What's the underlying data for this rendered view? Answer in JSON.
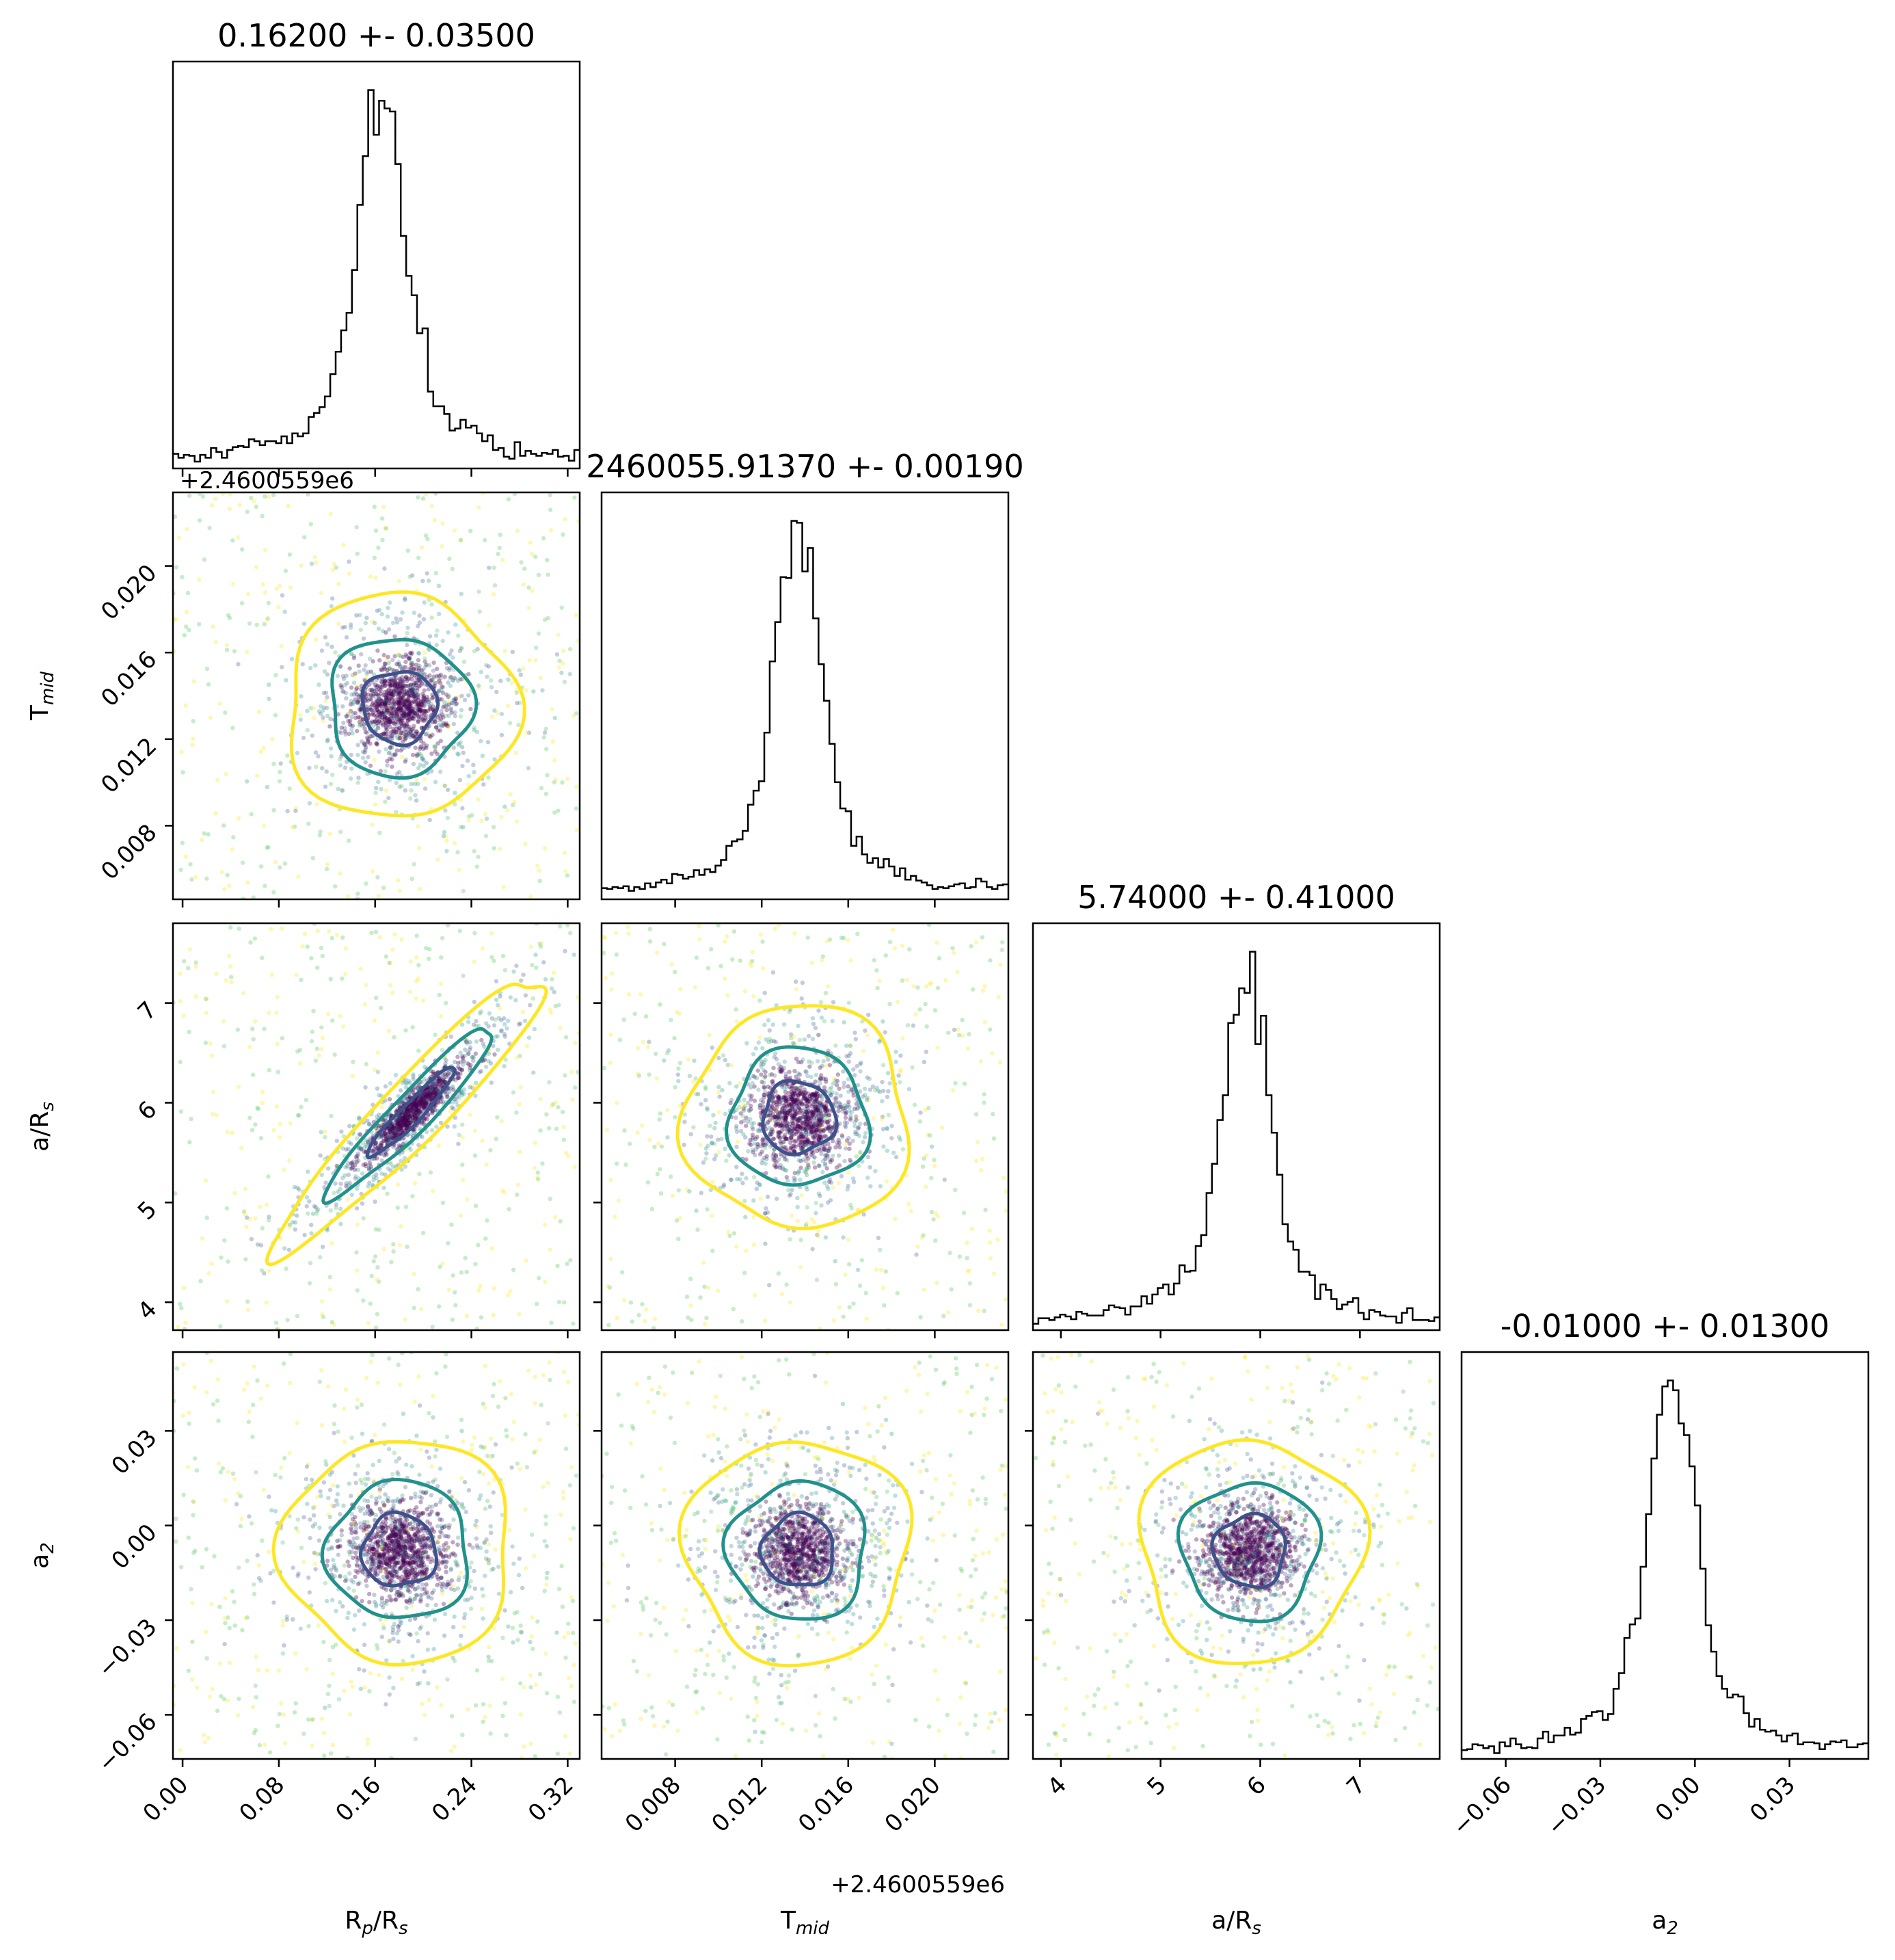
{
  "chart_data": {
    "type": "scatter",
    "subtype": "corner-plot",
    "parameters": [
      {
        "label_base": "R",
        "label_sub1": "p",
        "label_mid": "/R",
        "label_sub2": "s",
        "median": 0.162,
        "sigma": 0.035,
        "title": "0.16200 +- 0.03500",
        "range": [
          -0.008,
          0.33
        ],
        "ticks": [
          0.0,
          0.08,
          0.16,
          0.24,
          0.32
        ],
        "tick_labels": [
          "0.00",
          "0.08",
          "0.16",
          "0.24",
          "0.32"
        ],
        "offset_label": "",
        "hist_peak": 0.165
      },
      {
        "label_base": "T",
        "label_sub1": "mid",
        "label_mid": "",
        "label_sub2": "",
        "median": 0.0137,
        "sigma": 0.0019,
        "title": "2460055.91370 +- 0.00190",
        "range": [
          0.0046,
          0.0234
        ],
        "ticks": [
          0.008,
          0.012,
          0.016,
          0.02
        ],
        "tick_labels": [
          "0.008",
          "0.012",
          "0.016",
          "0.020"
        ],
        "offset_label": "+2.4600559e6",
        "hist_peak": 0.0137
      },
      {
        "label_base": "a/R",
        "label_sub1": "s",
        "label_mid": "",
        "label_sub2": "",
        "median": 5.74,
        "sigma": 0.41,
        "title": "5.74000 +- 0.41000",
        "range": [
          3.72,
          7.8
        ],
        "ticks": [
          4,
          5,
          6,
          7
        ],
        "tick_labels": [
          "4",
          "5",
          "6",
          "7"
        ],
        "offset_label": "",
        "hist_peak": 5.85
      },
      {
        "label_base": "a",
        "label_sub1": "2",
        "label_mid": "",
        "label_sub2": "",
        "median": -0.01,
        "sigma": 0.013,
        "title": "-0.01000 +- 0.01300",
        "range": [
          -0.074,
          0.055
        ],
        "ticks": [
          -0.06,
          -0.03,
          0.0,
          0.03
        ],
        "tick_labels": [
          "−0.06",
          "−0.03",
          "0.00",
          "0.03"
        ],
        "offset_label": "",
        "hist_peak": -0.007
      }
    ],
    "pairs": [
      {
        "x": 0,
        "y": 1,
        "center": [
          0.18,
          0.0135
        ],
        "correlation": 0.0
      },
      {
        "x": 0,
        "y": 2,
        "center": [
          0.19,
          5.9
        ],
        "correlation": 0.9
      },
      {
        "x": 1,
        "y": 2,
        "center": [
          0.0137,
          5.85
        ],
        "correlation": 0.0
      },
      {
        "x": 0,
        "y": 3,
        "center": [
          0.18,
          -0.008
        ],
        "correlation": 0.0
      },
      {
        "x": 1,
        "y": 3,
        "center": [
          0.0137,
          -0.008
        ],
        "correlation": 0.0
      },
      {
        "x": 2,
        "y": 3,
        "center": [
          5.9,
          -0.008
        ],
        "correlation": 0.0
      }
    ],
    "contour_colors": [
      "#3b528b",
      "#21918c",
      "#fde725"
    ],
    "scatter_colors": [
      "#440154",
      "#3b528b",
      "#21918c",
      "#5ec962",
      "#fde725"
    ],
    "hist_color": "#000000",
    "grid": false,
    "legend": "none"
  }
}
